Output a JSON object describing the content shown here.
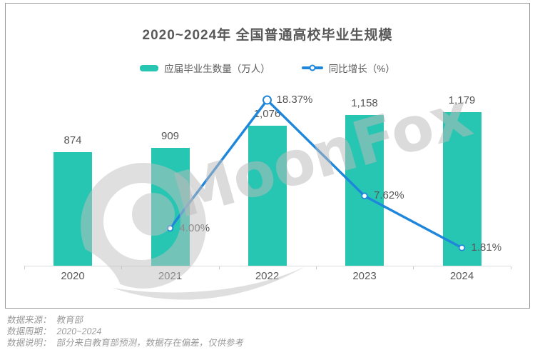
{
  "chart_data": {
    "type": "bar",
    "title": "2020~2024年 全国普通高校毕业生规模",
    "categories": [
      "2020",
      "2021",
      "2022",
      "2023",
      "2024"
    ],
    "series": [
      {
        "name": "应届毕业生数量（万人）",
        "series_type": "bar",
        "color": "#26c6b2",
        "values": [
          874,
          909,
          1076,
          1158,
          1179
        ],
        "labels": [
          "874",
          "909",
          "1,076",
          "1,158",
          "1,179"
        ]
      },
      {
        "name": "同比增长（%）",
        "series_type": "line",
        "color": "#1e86db",
        "values": [
          null,
          4.0,
          18.37,
          7.62,
          1.81
        ],
        "labels": [
          null,
          "4.00%",
          "18.37%",
          "7.62%",
          "1.81%"
        ]
      }
    ],
    "legend_position": "top",
    "grid": false,
    "y_axis_visible": false,
    "xlabel": "",
    "ylabel": ""
  },
  "watermark": {
    "text": "MoonFox"
  },
  "footer": {
    "lines": [
      {
        "label": "数据来源：",
        "value": "教育部"
      },
      {
        "label": "数据周期：",
        "value": "2020~2024"
      },
      {
        "label": "数据说明：",
        "value": "部分来自教育部预测，数据存在偏差，仅供参考"
      }
    ]
  }
}
